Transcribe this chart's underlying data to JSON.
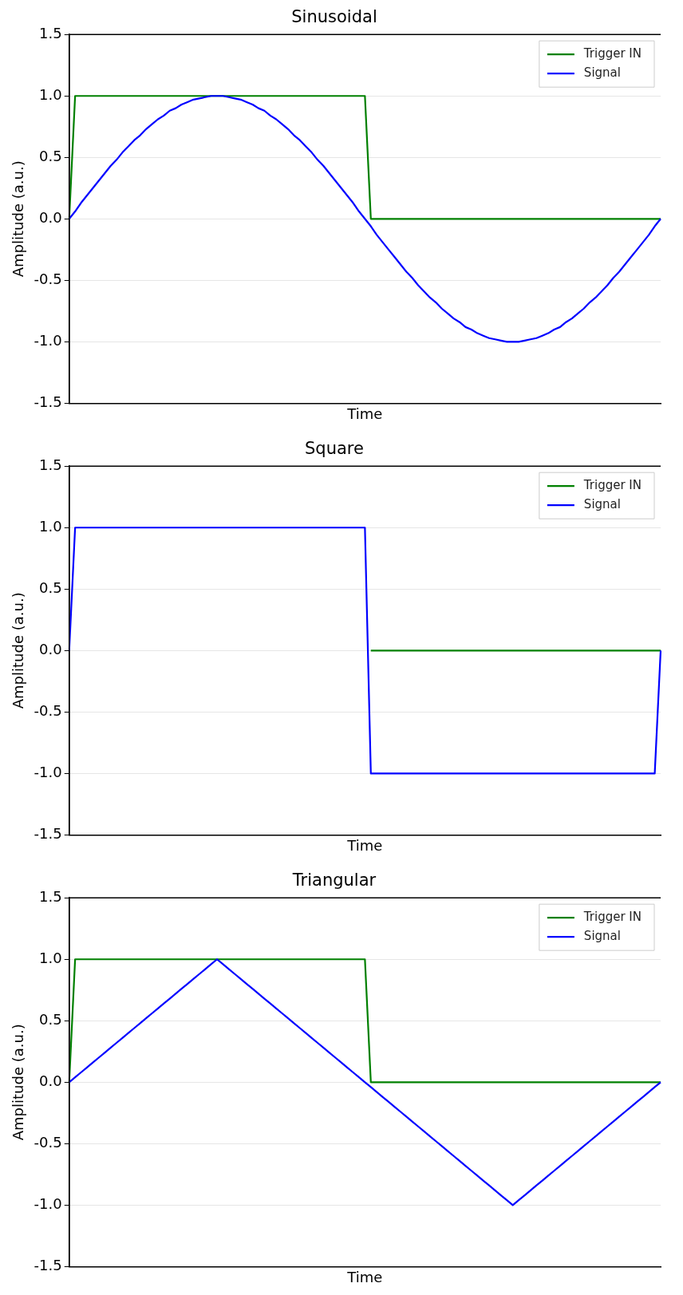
{
  "chart_data": [
    {
      "type": "line",
      "title": "Sinusoidal",
      "xlabel": "Time",
      "ylabel": "Amplitude (a.u.)",
      "legend": "top right",
      "grid": "y",
      "tick_labels": "y",
      "categories": [
        null,
        null,
        null,
        null,
        null,
        null,
        null,
        null,
        null,
        null,
        null,
        null,
        null,
        null,
        null,
        null,
        null,
        null,
        null,
        null,
        null,
        null,
        null,
        null,
        null,
        null,
        null,
        null,
        null,
        null,
        null,
        null,
        null,
        null,
        null,
        null,
        null,
        null,
        null,
        null,
        null,
        null,
        null,
        null,
        null,
        null,
        null,
        null,
        null,
        null,
        null,
        null,
        null,
        null,
        null,
        null,
        null,
        null,
        null,
        null,
        null,
        null,
        null,
        null,
        null,
        null,
        null,
        null,
        null,
        null,
        null,
        null,
        null,
        null,
        null,
        null,
        null,
        null,
        null,
        null,
        null,
        null,
        null,
        null,
        null,
        null,
        null,
        null,
        null,
        null,
        null,
        null,
        null,
        null,
        null,
        null,
        null,
        null,
        null,
        null,
        null
      ],
      "ylim": [
        -1.5,
        1.5
      ],
      "yticks": [
        {
          "value": -1.5,
          "label": "-1.5"
        },
        {
          "value": -1,
          "label": "-1.0"
        },
        {
          "value": -0.5,
          "label": "-0.5"
        },
        {
          "value": 0,
          "label": "0.0"
        },
        {
          "value": 0.5,
          "label": "0.5"
        },
        {
          "value": 1,
          "label": "1.0"
        },
        {
          "value": 1.5,
          "label": "1.5"
        }
      ],
      "series": [
        {
          "name": "Trigger IN",
          "color": "#008000",
          "values": [
            0,
            1,
            1,
            1,
            1,
            1,
            1,
            1,
            1,
            1,
            1,
            1,
            1,
            1,
            1,
            1,
            1,
            1,
            1,
            1,
            1,
            1,
            1,
            1,
            1,
            1,
            1,
            1,
            1,
            1,
            1,
            1,
            1,
            1,
            1,
            1,
            1,
            1,
            1,
            1,
            1,
            1,
            1,
            1,
            1,
            1,
            1,
            1,
            1,
            1,
            1,
            0,
            0,
            0,
            0,
            0,
            0,
            0,
            0,
            0,
            0,
            0,
            0,
            0,
            0,
            0,
            0,
            0,
            0,
            0,
            0,
            0,
            0,
            0,
            0,
            0,
            0,
            0,
            0,
            0,
            0,
            0,
            0,
            0,
            0,
            0,
            0,
            0,
            0,
            0,
            0,
            0,
            0,
            0,
            0,
            0,
            0,
            0,
            0,
            0,
            0
          ]
        },
        {
          "name": "Signal",
          "color": "#0000ff",
          "values": [
            0,
            0.06,
            0.13,
            0.19,
            0.25,
            0.31,
            0.37,
            0.43,
            0.48,
            0.54,
            0.59,
            0.64,
            0.68,
            0.73,
            0.77,
            0.81,
            0.84,
            0.88,
            0.9,
            0.93,
            0.95,
            0.97,
            0.98,
            0.99,
            1,
            1,
            1,
            0.99,
            0.98,
            0.97,
            0.95,
            0.93,
            0.9,
            0.88,
            0.84,
            0.81,
            0.77,
            0.73,
            0.68,
            0.64,
            0.59,
            0.54,
            0.48,
            0.43,
            0.37,
            0.31,
            0.25,
            0.19,
            0.13,
            0.06,
            0,
            -0.06,
            -0.13,
            -0.19,
            -0.25,
            -0.31,
            -0.37,
            -0.43,
            -0.48,
            -0.54,
            -0.59,
            -0.64,
            -0.68,
            -0.73,
            -0.77,
            -0.81,
            -0.84,
            -0.88,
            -0.9,
            -0.93,
            -0.95,
            -0.97,
            -0.98,
            -0.99,
            -1,
            -1,
            -1,
            -0.99,
            -0.98,
            -0.97,
            -0.95,
            -0.93,
            -0.9,
            -0.88,
            -0.84,
            -0.81,
            -0.77,
            -0.73,
            -0.68,
            -0.64,
            -0.59,
            -0.54,
            -0.48,
            -0.43,
            -0.37,
            -0.31,
            -0.25,
            -0.19,
            -0.13,
            -0.06,
            0
          ]
        }
      ]
    },
    {
      "type": "line",
      "title": "Square",
      "xlabel": "Time",
      "ylabel": "Amplitude (a.u.)",
      "legend": "top right",
      "grid": "y",
      "tick_labels": "y",
      "categories": [
        null,
        null,
        null,
        null,
        null,
        null,
        null,
        null,
        null,
        null,
        null,
        null,
        null,
        null,
        null,
        null,
        null,
        null,
        null,
        null,
        null,
        null,
        null,
        null,
        null,
        null,
        null,
        null,
        null,
        null,
        null,
        null,
        null,
        null,
        null,
        null,
        null,
        null,
        null,
        null,
        null,
        null,
        null,
        null,
        null,
        null,
        null,
        null,
        null,
        null,
        null,
        null,
        null,
        null,
        null,
        null,
        null,
        null,
        null,
        null,
        null,
        null,
        null,
        null,
        null,
        null,
        null,
        null,
        null,
        null,
        null,
        null,
        null,
        null,
        null,
        null,
        null,
        null,
        null,
        null,
        null,
        null,
        null,
        null,
        null,
        null,
        null,
        null,
        null,
        null,
        null,
        null,
        null,
        null,
        null,
        null,
        null,
        null,
        null,
        null,
        null
      ],
      "ylim": [
        -1.5,
        1.5
      ],
      "yticks": [
        {
          "value": -1.5,
          "label": "-1.5"
        },
        {
          "value": -1,
          "label": "-1.0"
        },
        {
          "value": -0.5,
          "label": "-0.5"
        },
        {
          "value": 0,
          "label": "0.0"
        },
        {
          "value": 0.5,
          "label": "0.5"
        },
        {
          "value": 1,
          "label": "1.0"
        },
        {
          "value": 1.5,
          "label": "1.5"
        }
      ],
      "series": [
        {
          "name": "Trigger IN",
          "color": "#008000",
          "values": [
            null,
            null,
            null,
            null,
            null,
            null,
            null,
            null,
            null,
            null,
            null,
            null,
            null,
            null,
            null,
            null,
            null,
            null,
            null,
            null,
            null,
            null,
            null,
            null,
            null,
            null,
            null,
            null,
            null,
            null,
            null,
            null,
            null,
            null,
            null,
            null,
            null,
            null,
            null,
            null,
            null,
            null,
            null,
            null,
            null,
            null,
            null,
            null,
            null,
            null,
            null,
            0,
            0,
            0,
            0,
            0,
            0,
            0,
            0,
            0,
            0,
            0,
            0,
            0,
            0,
            0,
            0,
            0,
            0,
            0,
            0,
            0,
            0,
            0,
            0,
            0,
            0,
            0,
            0,
            0,
            0,
            0,
            0,
            0,
            0,
            0,
            0,
            0,
            0,
            0,
            0,
            0,
            0,
            0,
            0,
            0,
            0,
            0,
            0,
            0,
            0
          ]
        },
        {
          "name": "Signal",
          "color": "#0000ff",
          "values": [
            0,
            1,
            1,
            1,
            1,
            1,
            1,
            1,
            1,
            1,
            1,
            1,
            1,
            1,
            1,
            1,
            1,
            1,
            1,
            1,
            1,
            1,
            1,
            1,
            1,
            1,
            1,
            1,
            1,
            1,
            1,
            1,
            1,
            1,
            1,
            1,
            1,
            1,
            1,
            1,
            1,
            1,
            1,
            1,
            1,
            1,
            1,
            1,
            1,
            1,
            1,
            -1,
            -1,
            -1,
            -1,
            -1,
            -1,
            -1,
            -1,
            -1,
            -1,
            -1,
            -1,
            -1,
            -1,
            -1,
            -1,
            -1,
            -1,
            -1,
            -1,
            -1,
            -1,
            -1,
            -1,
            -1,
            -1,
            -1,
            -1,
            -1,
            -1,
            -1,
            -1,
            -1,
            -1,
            -1,
            -1,
            -1,
            -1,
            -1,
            -1,
            -1,
            -1,
            -1,
            -1,
            -1,
            -1,
            -1,
            -1,
            -1,
            0
          ]
        }
      ]
    },
    {
      "type": "line",
      "title": "Triangular",
      "xlabel": "Time",
      "ylabel": "Amplitude (a.u.)",
      "legend": "top right",
      "grid": "y",
      "tick_labels": "y",
      "categories": [
        null,
        null,
        null,
        null,
        null,
        null,
        null,
        null,
        null,
        null,
        null,
        null,
        null,
        null,
        null,
        null,
        null,
        null,
        null,
        null,
        null,
        null,
        null,
        null,
        null,
        null,
        null,
        null,
        null,
        null,
        null,
        null,
        null,
        null,
        null,
        null,
        null,
        null,
        null,
        null,
        null,
        null,
        null,
        null,
        null,
        null,
        null,
        null,
        null,
        null,
        null,
        null,
        null,
        null,
        null,
        null,
        null,
        null,
        null,
        null,
        null,
        null,
        null,
        null,
        null,
        null,
        null,
        null,
        null,
        null,
        null,
        null,
        null,
        null,
        null,
        null,
        null,
        null,
        null,
        null,
        null,
        null,
        null,
        null,
        null,
        null,
        null,
        null,
        null,
        null,
        null,
        null,
        null,
        null,
        null,
        null,
        null,
        null,
        null,
        null,
        null
      ],
      "ylim": [
        -1.5,
        1.5
      ],
      "yticks": [
        {
          "value": -1.5,
          "label": "-1.5"
        },
        {
          "value": -1,
          "label": "-1.0"
        },
        {
          "value": -0.5,
          "label": "-0.5"
        },
        {
          "value": 0,
          "label": "0.0"
        },
        {
          "value": 0.5,
          "label": "0.5"
        },
        {
          "value": 1,
          "label": "1.0"
        },
        {
          "value": 1.5,
          "label": "1.5"
        }
      ],
      "series": [
        {
          "name": "Trigger IN",
          "color": "#008000",
          "values": [
            0,
            1,
            1,
            1,
            1,
            1,
            1,
            1,
            1,
            1,
            1,
            1,
            1,
            1,
            1,
            1,
            1,
            1,
            1,
            1,
            1,
            1,
            1,
            1,
            1,
            1,
            1,
            1,
            1,
            1,
            1,
            1,
            1,
            1,
            1,
            1,
            1,
            1,
            1,
            1,
            1,
            1,
            1,
            1,
            1,
            1,
            1,
            1,
            1,
            1,
            1,
            0,
            0,
            0,
            0,
            0,
            0,
            0,
            0,
            0,
            0,
            0,
            0,
            0,
            0,
            0,
            0,
            0,
            0,
            0,
            0,
            0,
            0,
            0,
            0,
            0,
            0,
            0,
            0,
            0,
            0,
            0,
            0,
            0,
            0,
            0,
            0,
            0,
            0,
            0,
            0,
            0,
            0,
            0,
            0,
            0,
            0,
            0,
            0,
            0,
            0
          ]
        },
        {
          "name": "Signal",
          "color": "#0000ff",
          "values": [
            0,
            0.04,
            0.08,
            0.12,
            0.16,
            0.2,
            0.24,
            0.28,
            0.32,
            0.36,
            0.4,
            0.44,
            0.48,
            0.52,
            0.56,
            0.6,
            0.64,
            0.68,
            0.72,
            0.76,
            0.8,
            0.84,
            0.88,
            0.92,
            0.96,
            1,
            0.96,
            0.92,
            0.88,
            0.84,
            0.8,
            0.76,
            0.72,
            0.68,
            0.64,
            0.6,
            0.56,
            0.52,
            0.48,
            0.44,
            0.4,
            0.36,
            0.32,
            0.28,
            0.24,
            0.2,
            0.16,
            0.12,
            0.08,
            0.04,
            0,
            -0.04,
            -0.08,
            -0.12,
            -0.16,
            -0.2,
            -0.24,
            -0.28,
            -0.32,
            -0.36,
            -0.4,
            -0.44,
            -0.48,
            -0.52,
            -0.56,
            -0.6,
            -0.64,
            -0.68,
            -0.72,
            -0.76,
            -0.8,
            -0.84,
            -0.88,
            -0.92,
            -0.96,
            -1,
            -0.96,
            -0.92,
            -0.88,
            -0.84,
            -0.8,
            -0.76,
            -0.72,
            -0.68,
            -0.64,
            -0.6,
            -0.56,
            -0.52,
            -0.48,
            -0.44,
            -0.4,
            -0.36,
            -0.32,
            -0.28,
            -0.24,
            -0.2,
            -0.16,
            -0.12,
            -0.08,
            -0.04,
            0
          ]
        }
      ]
    }
  ]
}
